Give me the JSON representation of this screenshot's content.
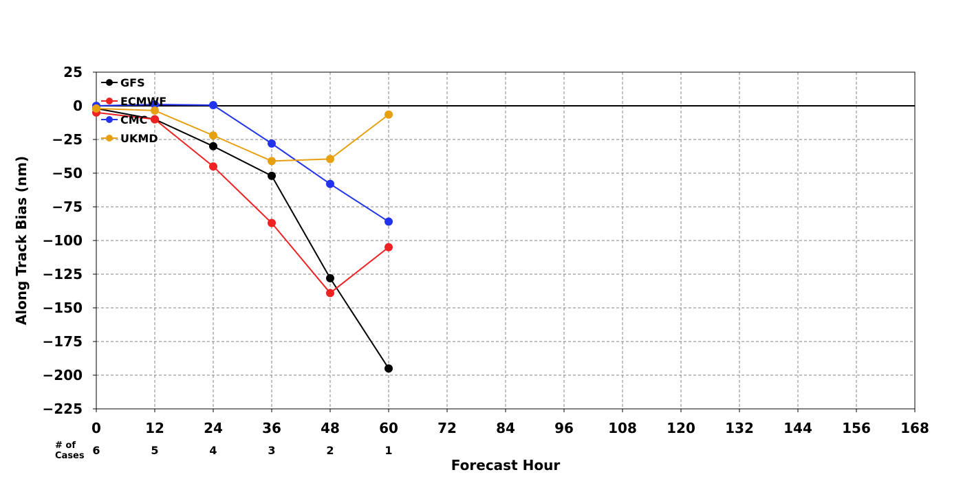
{
  "chart_data": {
    "type": "line",
    "title": "",
    "xlabel": "Forecast Hour",
    "ylabel": "Along Track Bias (nm)",
    "xlim": [
      0,
      168
    ],
    "ylim": [
      -225,
      25
    ],
    "x_ticks": [
      0,
      12,
      24,
      36,
      48,
      60,
      72,
      84,
      96,
      108,
      120,
      132,
      144,
      156,
      168
    ],
    "y_ticks": [
      25,
      0,
      -25,
      -50,
      -75,
      -100,
      -125,
      -150,
      -175,
      -200,
      -225
    ],
    "y_tick_labels": [
      "25",
      "0",
      "−25",
      "−50",
      "−75",
      "−100",
      "−125",
      "−150",
      "−175",
      "−200",
      "−225"
    ],
    "grid": true,
    "zero_line": true,
    "legend_position": "top-left",
    "series": [
      {
        "name": "GFS",
        "color": "#000000",
        "x": [
          0,
          12,
          24,
          36,
          48,
          60
        ],
        "y": [
          -2,
          -10,
          -30,
          -52,
          -128,
          -195
        ]
      },
      {
        "name": "ECMWF",
        "color": "#ee2222",
        "x": [
          0,
          12,
          24,
          36,
          48,
          60
        ],
        "y": [
          -5,
          -10,
          -45,
          -87,
          -139,
          -105
        ]
      },
      {
        "name": "CMC",
        "color": "#2233ee",
        "x": [
          0,
          12,
          24,
          36,
          48,
          60
        ],
        "y": [
          0,
          1,
          0.5,
          -28,
          -58,
          -86
        ]
      },
      {
        "name": "UKMD",
        "color": "#e6a010",
        "x": [
          0,
          12,
          24,
          36,
          48,
          60
        ],
        "y": [
          -2,
          -3.5,
          -22,
          -41,
          -39.5,
          -6.5
        ]
      }
    ],
    "cases": {
      "header": "# of\nCases",
      "x": [
        0,
        12,
        24,
        36,
        48,
        60
      ],
      "values": [
        "6",
        "5",
        "4",
        "3",
        "2",
        "1"
      ]
    }
  }
}
